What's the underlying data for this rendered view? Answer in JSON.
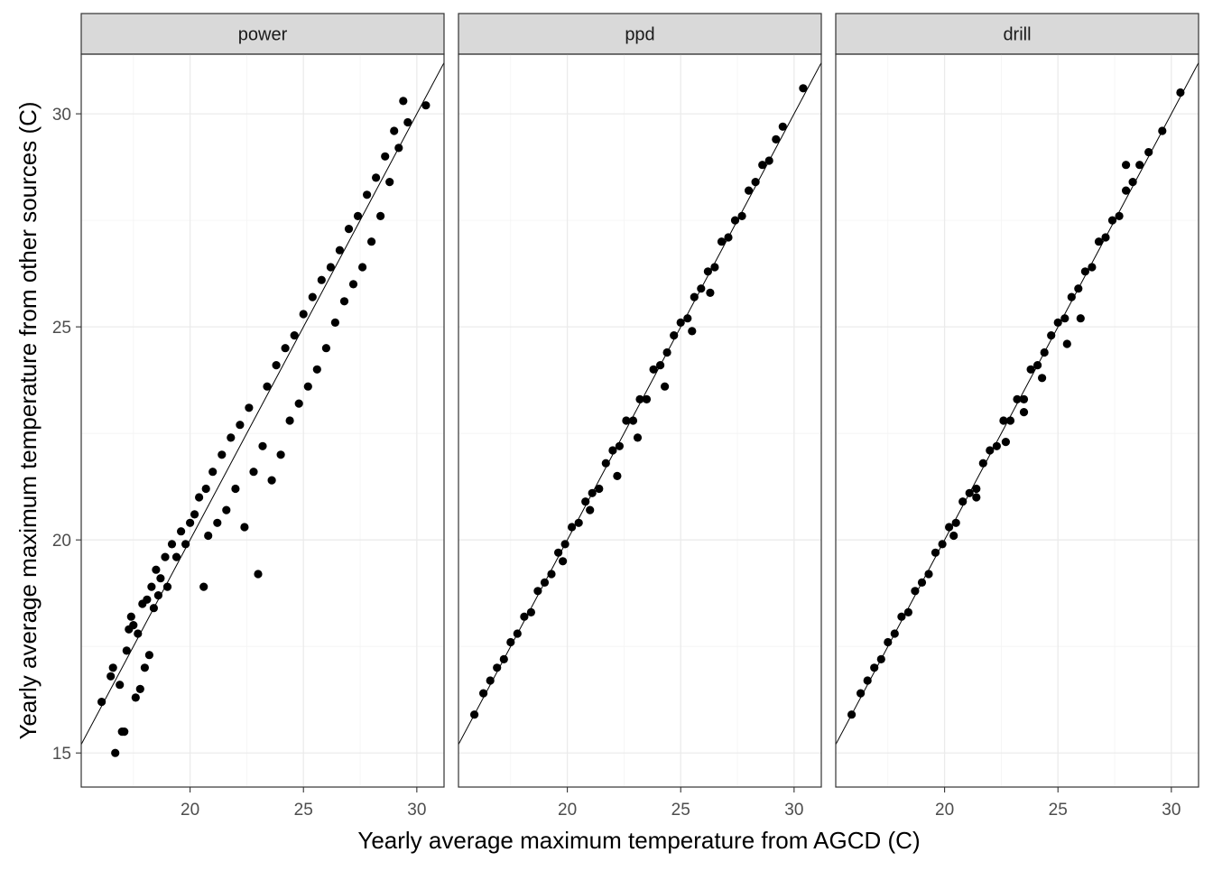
{
  "chart_data": {
    "type": "scatter",
    "xlabel": "Yearly average maximum temperature from AGCD (C)",
    "ylabel": "Yearly average maximum temperature from other sources (C)",
    "xlim": [
      15.2,
      31.2
    ],
    "ylim": [
      14.2,
      31.4
    ],
    "x_ticks": [
      20,
      25,
      30
    ],
    "y_ticks": [
      15,
      20,
      25,
      30
    ],
    "grid": true,
    "reference_line": {
      "slope": 1,
      "intercept": 0
    },
    "facets": [
      {
        "label": "power",
        "points": [
          [
            16.1,
            16.2
          ],
          [
            16.5,
            16.8
          ],
          [
            16.6,
            17.0
          ],
          [
            16.7,
            15.0
          ],
          [
            16.9,
            16.6
          ],
          [
            17.0,
            15.5
          ],
          [
            17.1,
            15.5
          ],
          [
            17.2,
            17.4
          ],
          [
            17.3,
            17.9
          ],
          [
            17.4,
            18.2
          ],
          [
            17.5,
            18.0
          ],
          [
            17.6,
            16.3
          ],
          [
            17.7,
            17.8
          ],
          [
            17.8,
            16.5
          ],
          [
            17.9,
            18.5
          ],
          [
            18.0,
            17.0
          ],
          [
            18.1,
            18.6
          ],
          [
            18.2,
            17.3
          ],
          [
            18.3,
            18.9
          ],
          [
            18.4,
            18.4
          ],
          [
            18.5,
            19.3
          ],
          [
            18.6,
            18.7
          ],
          [
            18.7,
            19.1
          ],
          [
            18.9,
            19.6
          ],
          [
            19.0,
            18.9
          ],
          [
            19.2,
            19.9
          ],
          [
            19.4,
            19.6
          ],
          [
            19.6,
            20.2
          ],
          [
            19.8,
            19.9
          ],
          [
            20.0,
            20.4
          ],
          [
            20.2,
            20.6
          ],
          [
            20.4,
            21.0
          ],
          [
            20.6,
            18.9
          ],
          [
            20.7,
            21.2
          ],
          [
            20.8,
            20.1
          ],
          [
            21.0,
            21.6
          ],
          [
            21.2,
            20.4
          ],
          [
            21.4,
            22.0
          ],
          [
            21.6,
            20.7
          ],
          [
            21.8,
            22.4
          ],
          [
            22.0,
            21.2
          ],
          [
            22.2,
            22.7
          ],
          [
            22.4,
            20.3
          ],
          [
            22.6,
            23.1
          ],
          [
            22.8,
            21.6
          ],
          [
            23.0,
            19.2
          ],
          [
            23.2,
            22.2
          ],
          [
            23.4,
            23.6
          ],
          [
            23.6,
            21.4
          ],
          [
            23.8,
            24.1
          ],
          [
            24.0,
            22.0
          ],
          [
            24.2,
            24.5
          ],
          [
            24.4,
            22.8
          ],
          [
            24.6,
            24.8
          ],
          [
            24.8,
            23.2
          ],
          [
            25.0,
            25.3
          ],
          [
            25.2,
            23.6
          ],
          [
            25.4,
            25.7
          ],
          [
            25.6,
            24.0
          ],
          [
            25.8,
            26.1
          ],
          [
            26.0,
            24.5
          ],
          [
            26.2,
            26.4
          ],
          [
            26.4,
            25.1
          ],
          [
            26.6,
            26.8
          ],
          [
            26.8,
            25.6
          ],
          [
            27.0,
            27.3
          ],
          [
            27.2,
            26.0
          ],
          [
            27.4,
            27.6
          ],
          [
            27.6,
            26.4
          ],
          [
            27.8,
            28.1
          ],
          [
            28.0,
            27.0
          ],
          [
            28.2,
            28.5
          ],
          [
            28.4,
            27.6
          ],
          [
            28.6,
            29.0
          ],
          [
            28.8,
            28.4
          ],
          [
            29.0,
            29.6
          ],
          [
            29.2,
            29.2
          ],
          [
            29.4,
            30.3
          ],
          [
            29.6,
            29.8
          ],
          [
            30.4,
            30.2
          ]
        ]
      },
      {
        "label": "ppd",
        "points": [
          [
            15.9,
            15.9
          ],
          [
            16.3,
            16.4
          ],
          [
            16.6,
            16.7
          ],
          [
            16.9,
            17.0
          ],
          [
            17.2,
            17.2
          ],
          [
            17.5,
            17.6
          ],
          [
            17.8,
            17.8
          ],
          [
            18.1,
            18.2
          ],
          [
            18.4,
            18.3
          ],
          [
            18.7,
            18.8
          ],
          [
            19.0,
            19.0
          ],
          [
            19.3,
            19.2
          ],
          [
            19.6,
            19.7
          ],
          [
            19.9,
            19.9
          ],
          [
            20.2,
            20.3
          ],
          [
            20.5,
            20.4
          ],
          [
            20.8,
            20.9
          ],
          [
            21.1,
            21.1
          ],
          [
            21.4,
            21.2
          ],
          [
            21.7,
            21.8
          ],
          [
            22.0,
            22.1
          ],
          [
            22.3,
            22.2
          ],
          [
            22.6,
            22.8
          ],
          [
            22.9,
            22.8
          ],
          [
            23.2,
            23.3
          ],
          [
            23.5,
            23.3
          ],
          [
            23.8,
            24.0
          ],
          [
            24.1,
            24.1
          ],
          [
            24.4,
            24.4
          ],
          [
            24.7,
            24.8
          ],
          [
            25.0,
            25.1
          ],
          [
            25.3,
            25.2
          ],
          [
            25.6,
            25.7
          ],
          [
            25.9,
            25.9
          ],
          [
            26.2,
            26.3
          ],
          [
            26.5,
            26.4
          ],
          [
            26.8,
            27.0
          ],
          [
            27.1,
            27.1
          ],
          [
            27.4,
            27.5
          ],
          [
            27.7,
            27.6
          ],
          [
            28.0,
            28.2
          ],
          [
            28.3,
            28.4
          ],
          [
            28.6,
            28.8
          ],
          [
            28.9,
            28.9
          ],
          [
            29.2,
            29.4
          ],
          [
            29.5,
            29.7
          ],
          [
            30.4,
            30.6
          ],
          [
            22.2,
            21.5
          ],
          [
            23.1,
            22.4
          ],
          [
            24.3,
            23.6
          ],
          [
            25.5,
            24.9
          ],
          [
            26.3,
            25.8
          ],
          [
            21.0,
            20.7
          ],
          [
            19.8,
            19.5
          ]
        ]
      },
      {
        "label": "drill",
        "points": [
          [
            15.9,
            15.9
          ],
          [
            16.3,
            16.4
          ],
          [
            16.6,
            16.7
          ],
          [
            16.9,
            17.0
          ],
          [
            17.2,
            17.2
          ],
          [
            17.5,
            17.6
          ],
          [
            17.8,
            17.8
          ],
          [
            18.1,
            18.2
          ],
          [
            18.4,
            18.3
          ],
          [
            18.7,
            18.8
          ],
          [
            19.0,
            19.0
          ],
          [
            19.3,
            19.2
          ],
          [
            19.6,
            19.7
          ],
          [
            19.9,
            19.9
          ],
          [
            20.2,
            20.3
          ],
          [
            20.5,
            20.4
          ],
          [
            20.8,
            20.9
          ],
          [
            21.1,
            21.1
          ],
          [
            21.4,
            21.2
          ],
          [
            21.7,
            21.8
          ],
          [
            22.0,
            22.1
          ],
          [
            22.3,
            22.2
          ],
          [
            22.6,
            22.8
          ],
          [
            22.9,
            22.8
          ],
          [
            23.2,
            23.3
          ],
          [
            23.5,
            23.3
          ],
          [
            23.8,
            24.0
          ],
          [
            24.1,
            24.1
          ],
          [
            24.4,
            24.4
          ],
          [
            24.7,
            24.8
          ],
          [
            25.0,
            25.1
          ],
          [
            25.3,
            25.2
          ],
          [
            25.6,
            25.7
          ],
          [
            25.9,
            25.9
          ],
          [
            26.2,
            26.3
          ],
          [
            26.5,
            26.4
          ],
          [
            26.8,
            27.0
          ],
          [
            27.1,
            27.1
          ],
          [
            27.4,
            27.5
          ],
          [
            27.7,
            27.6
          ],
          [
            28.0,
            28.2
          ],
          [
            28.3,
            28.4
          ],
          [
            28.6,
            28.8
          ],
          [
            29.0,
            29.1
          ],
          [
            29.6,
            29.6
          ],
          [
            30.4,
            30.5
          ],
          [
            22.7,
            22.3
          ],
          [
            23.5,
            23.0
          ],
          [
            24.3,
            23.8
          ],
          [
            25.4,
            24.6
          ],
          [
            26.0,
            25.2
          ],
          [
            28.0,
            28.8
          ],
          [
            21.4,
            21.0
          ],
          [
            20.4,
            20.1
          ]
        ]
      }
    ]
  }
}
